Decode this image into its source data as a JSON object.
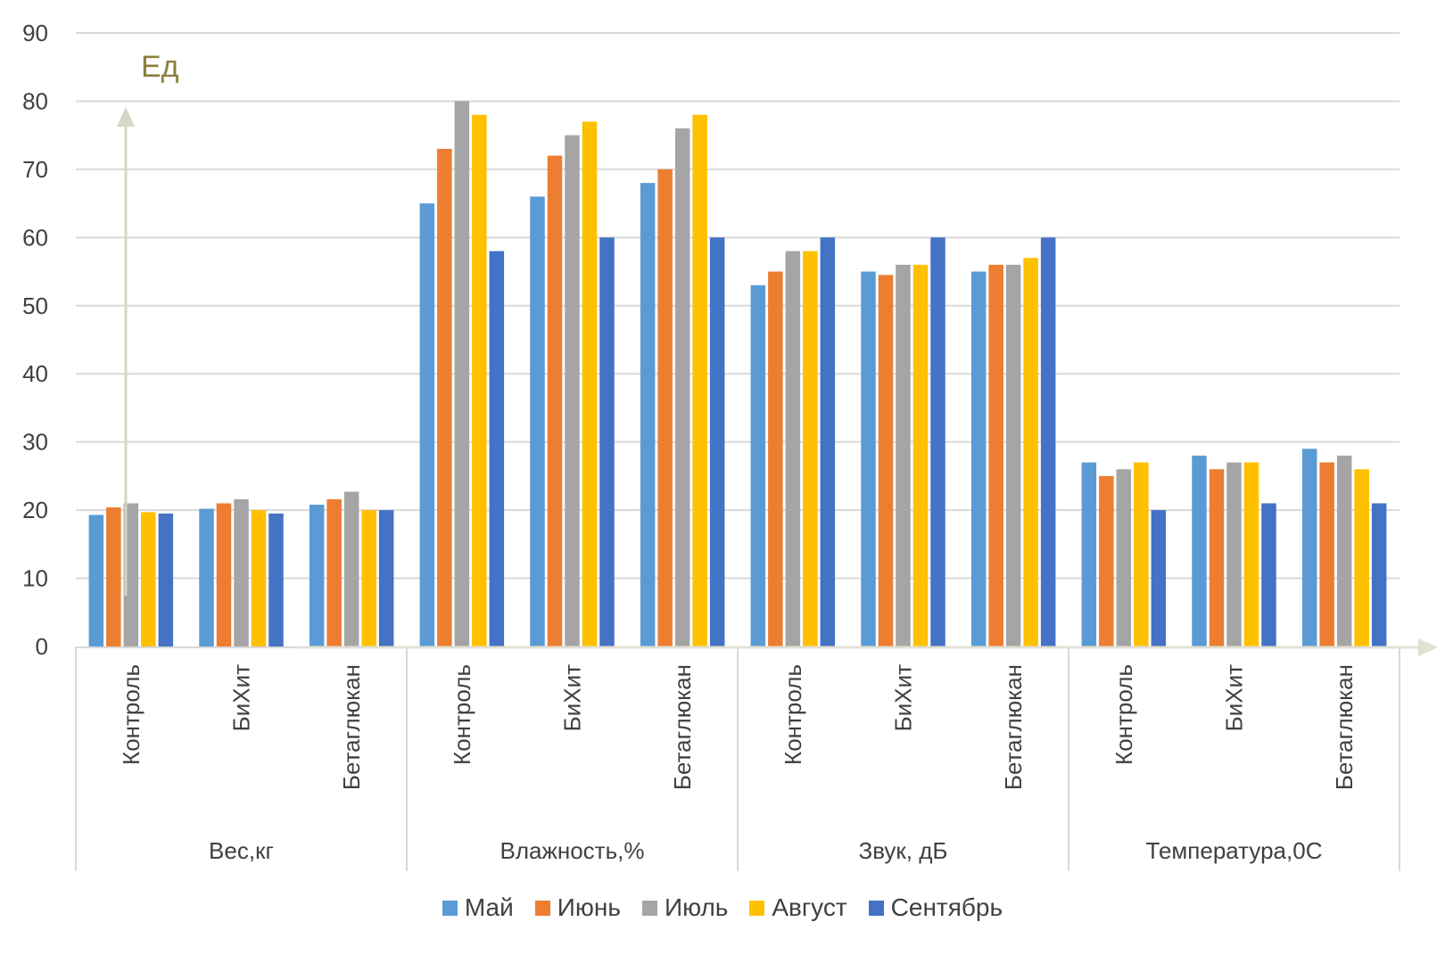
{
  "chart_data": {
    "type": "bar",
    "ylim": [
      0,
      90
    ],
    "yticks": [
      0,
      10,
      20,
      30,
      40,
      50,
      60,
      70,
      80,
      90
    ],
    "grid": true,
    "legend_position": "bottom",
    "unit_label": "Ед",
    "groups": [
      {
        "label": "Вес,кг",
        "categories": [
          "Контроль",
          "БиХит",
          "Бетаглюкан"
        ]
      },
      {
        "label": "Влажность,%",
        "categories": [
          "Контроль",
          "БиХит",
          "Бетаглюкан"
        ]
      },
      {
        "label": "Звук, дБ",
        "categories": [
          "Контроль",
          "БиХит",
          "Бетаглюкан"
        ]
      },
      {
        "label": "Температура,0С",
        "categories": [
          "Контроль",
          "БиХит",
          "Бетаглюкан"
        ]
      }
    ],
    "series": [
      {
        "name": "Май",
        "color": "#5b9bd5",
        "values": [
          19.3,
          20.2,
          20.8,
          65,
          66,
          68,
          53,
          55,
          55,
          27,
          28,
          29
        ]
      },
      {
        "name": "Июнь",
        "color": "#ed7d31",
        "values": [
          20.4,
          21,
          21.6,
          73,
          72,
          70,
          55,
          54.5,
          56,
          25,
          26,
          27
        ]
      },
      {
        "name": "Июль",
        "color": "#a5a5a5",
        "values": [
          21,
          21.6,
          22.7,
          80,
          75,
          76,
          58,
          56,
          56,
          26,
          27,
          28
        ]
      },
      {
        "name": "Август",
        "color": "#ffc000",
        "values": [
          19.7,
          20,
          20,
          78,
          77,
          78,
          58,
          56,
          57,
          27,
          27,
          26
        ]
      },
      {
        "name": "Сентябрь",
        "color": "#4472c4",
        "values": [
          19.5,
          19.5,
          20,
          58,
          60,
          60,
          60,
          60,
          60,
          20,
          21,
          21
        ]
      }
    ]
  }
}
